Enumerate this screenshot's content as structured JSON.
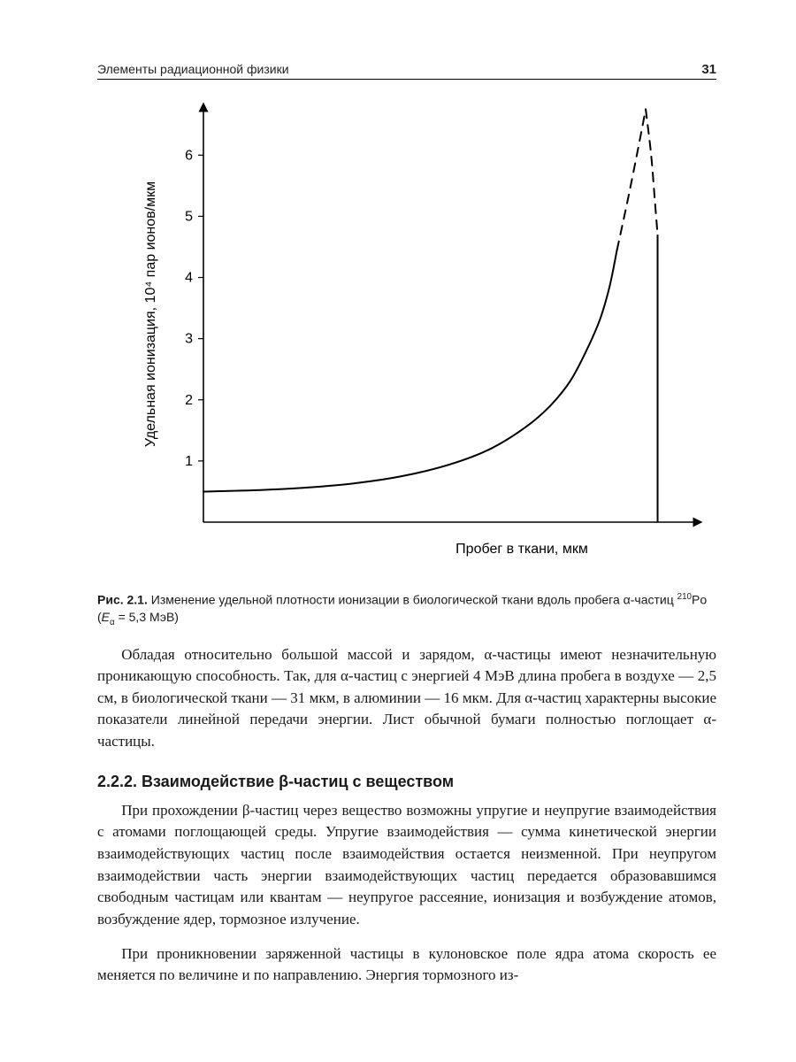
{
  "header": {
    "running_title": "Элементы радиационной физики",
    "page_number": "31"
  },
  "figure": {
    "type": "line",
    "y_label": "Удельная ионизация, 10⁴ пар ионов/мкм",
    "x_label": "Пробег в ткани, мкм",
    "y_ticks": [
      1,
      2,
      3,
      4,
      5,
      6
    ],
    "x_range": [
      0,
      10
    ],
    "y_range": [
      0,
      6.8
    ],
    "curve_solid": [
      [
        0.0,
        0.5
      ],
      [
        1.0,
        0.52
      ],
      [
        2.0,
        0.56
      ],
      [
        3.0,
        0.63
      ],
      [
        4.0,
        0.75
      ],
      [
        5.0,
        0.95
      ],
      [
        5.8,
        1.2
      ],
      [
        6.5,
        1.55
      ],
      [
        7.0,
        1.9
      ],
      [
        7.4,
        2.3
      ],
      [
        7.7,
        2.75
      ],
      [
        8.0,
        3.3
      ],
      [
        8.2,
        3.85
      ],
      [
        8.35,
        4.45
      ]
    ],
    "curve_dashed_up": [
      [
        8.35,
        4.45
      ],
      [
        8.55,
        5.2
      ],
      [
        8.75,
        6.0
      ],
      [
        8.93,
        6.75
      ]
    ],
    "curve_dashed_down": [
      [
        8.93,
        6.75
      ],
      [
        9.04,
        6.0
      ],
      [
        9.12,
        5.2
      ],
      [
        9.17,
        4.7
      ]
    ],
    "drop_line": {
      "x": 9.17,
      "y_from": 4.7,
      "y_to": 0.0
    },
    "stroke_color": "#000000",
    "line_width_solid": 2.0,
    "line_width_dashed": 2.0,
    "line_width_axis": 1.6,
    "dash_pattern": "10,8",
    "background_color": "#ffffff",
    "tick_font_size": 16,
    "label_font_size": 16
  },
  "caption": {
    "label": "Рис. 2.1.",
    "text": " Изменение удельной плотности ионизации в биологической ткани вдоль пробега α-частиц ",
    "isotope_sup": "210",
    "isotope": "Po (",
    "energy_var": "E",
    "energy_sub": "α",
    "energy_rest": " = 5,3 МэВ)"
  },
  "paragraph1": "Обладая относительно большой массой и зарядом, α-частицы имеют незначительную проникающую способность. Так, для α-частиц с энергией 4 МэВ длина пробега в воздухе — 2,5 см, в биологической ткани — 31 мкм, в алюминии — 16 мкм. Для α-частиц характерны высокие показатели линейной передачи энергии. Лист обычной бумаги полностью поглощает α-частицы.",
  "section_heading": "2.2.2. Взаимодействие β-частиц с веществом",
  "paragraph2": "При прохождении β-частиц через вещество возможны упругие и неупругие взаимодействия с атомами поглощающей среды. Упругие взаимодействия — сумма кинетической энергии взаимодействующих частиц после взаимодействия остается неизменной. При неупругом взаимодействии часть энергии взаимодействующих частиц передается образовавшимся свободным частицам или квантам — неупругое рассеяние, ионизация и возбуждение атомов, возбуждение ядер, тормозное излучение.",
  "paragraph3": "При проникновении заряженной частицы в кулоновское поле ядра атома скорость ее меняется по величине и по направлению. Энергия тормозного из-"
}
